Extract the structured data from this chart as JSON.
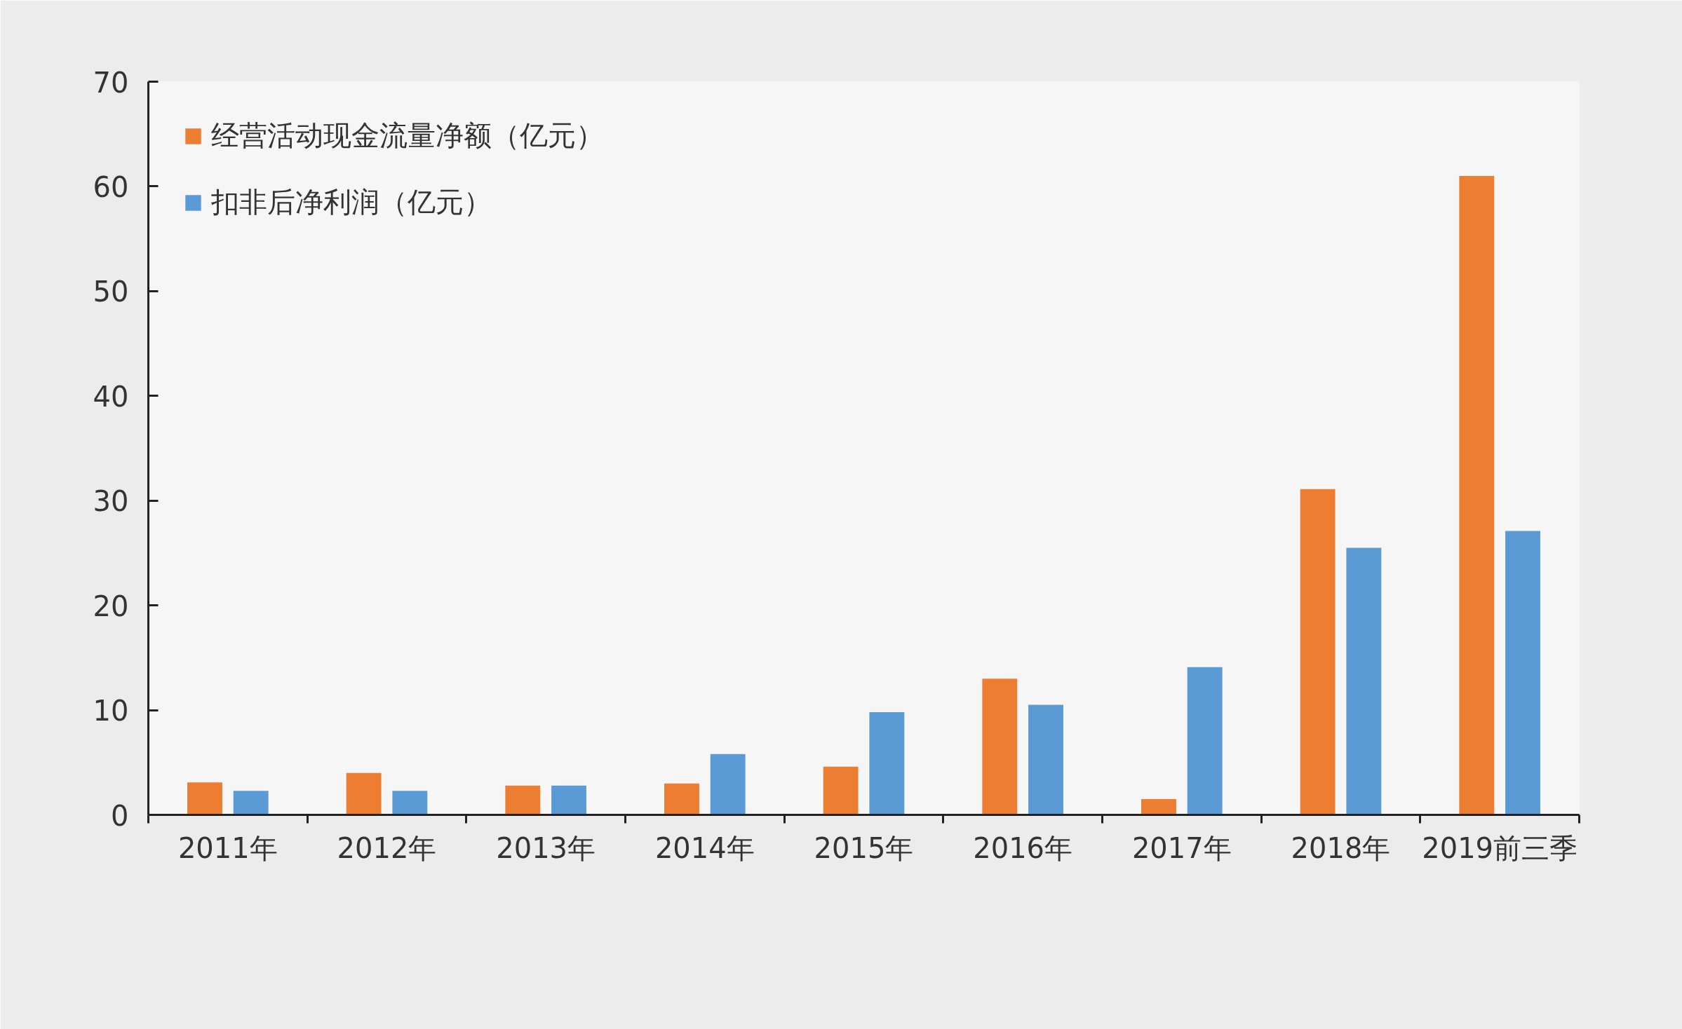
{
  "chart_data": {
    "type": "bar",
    "categories": [
      "2011年",
      "2012年",
      "2013年",
      "2014年",
      "2015年",
      "2016年",
      "2017年",
      "2018年",
      "2019前三季"
    ],
    "series": [
      {
        "name": "经营活动现金流量净额（亿元）",
        "color": "#ed7d31",
        "values": [
          3.1,
          4.0,
          2.8,
          3.0,
          4.6,
          13.0,
          1.5,
          31.1,
          61.0
        ]
      },
      {
        "name": "扣非后净利润（亿元）",
        "color": "#5b9bd5",
        "values": [
          2.3,
          2.3,
          2.8,
          5.8,
          9.8,
          10.5,
          14.1,
          25.5,
          27.1
        ]
      }
    ],
    "ylim": [
      0,
      70
    ],
    "yticks": [
      0,
      10,
      20,
      30,
      40,
      50,
      60,
      70
    ],
    "legend": "top left"
  }
}
